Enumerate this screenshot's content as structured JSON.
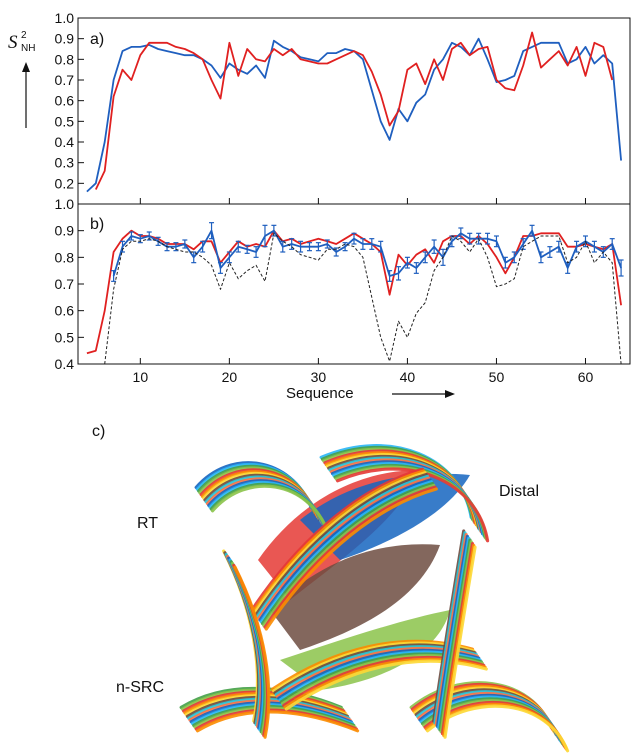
{
  "figure": {
    "ylabel_main": "S",
    "ylabel_sup": "2",
    "ylabel_sub": "NH",
    "xlabel": "Sequence"
  },
  "panel_c": {
    "label": "c)",
    "regions": [
      "RT",
      "Distal",
      "n-SRC"
    ],
    "ribbon_colors": [
      "#1565c0",
      "#29b6f6",
      "#43a047",
      "#8bc34a",
      "#e53935",
      "#fb8c00",
      "#fdd835",
      "#6d4c41",
      "#26c6da",
      "#ff7043"
    ]
  },
  "chart_data": [
    {
      "type": "line",
      "panel_label": "a)",
      "xlim": [
        3,
        65
      ],
      "ylim": [
        0.1,
        1.0
      ],
      "y_ticks": [
        0.1,
        0.2,
        0.3,
        0.4,
        0.5,
        0.6,
        0.7,
        0.8,
        0.9,
        1.0
      ],
      "y_tick_labels": [
        "",
        "0.2",
        "0.3",
        "0.4",
        "0.5",
        "0.6",
        "0.7",
        "0.8",
        "0.9",
        "1.0"
      ],
      "x_ticks": [
        10,
        20,
        30,
        40,
        50,
        60
      ],
      "series": [
        {
          "color": "#1f5fbf",
          "x": [
            4,
            5,
            6,
            7,
            8,
            9,
            10,
            11,
            12,
            13,
            14,
            15,
            16,
            17,
            18,
            19,
            20,
            21,
            22,
            23,
            24,
            25,
            26,
            27,
            28,
            29,
            30,
            31,
            32,
            33,
            34,
            35,
            36,
            37,
            38,
            39,
            40,
            41,
            42,
            43,
            44,
            45,
            46,
            47,
            48,
            49,
            50,
            51,
            52,
            53,
            54,
            55,
            56,
            57,
            58,
            59,
            60,
            61,
            62,
            63,
            64
          ],
          "y": [
            0.16,
            0.2,
            0.4,
            0.7,
            0.84,
            0.86,
            0.86,
            0.87,
            0.85,
            0.84,
            0.83,
            0.82,
            0.82,
            0.8,
            0.77,
            0.71,
            0.78,
            0.75,
            0.73,
            0.77,
            0.71,
            0.89,
            0.86,
            0.84,
            0.81,
            0.8,
            0.79,
            0.83,
            0.83,
            0.85,
            0.84,
            0.8,
            0.65,
            0.5,
            0.41,
            0.56,
            0.5,
            0.59,
            0.63,
            0.75,
            0.8,
            0.88,
            0.86,
            0.82,
            0.9,
            0.8,
            0.69,
            0.7,
            0.72,
            0.84,
            0.86,
            0.88,
            0.88,
            0.88,
            0.78,
            0.8,
            0.86,
            0.78,
            0.82,
            0.78,
            0.31
          ]
        },
        {
          "color": "#e02020",
          "x": [
            5,
            6,
            7,
            8,
            9,
            10,
            11,
            12,
            13,
            14,
            15,
            16,
            17,
            18,
            19,
            20,
            21,
            22,
            23,
            24,
            25,
            26,
            27,
            28,
            29,
            30,
            31,
            32,
            33,
            34,
            35,
            36,
            37,
            38,
            39,
            40,
            41,
            42,
            43,
            44,
            45,
            46,
            47,
            48,
            49,
            50,
            51,
            52,
            53,
            54,
            55,
            56,
            57,
            58,
            59,
            60,
            61,
            62,
            63
          ],
          "y": [
            0.17,
            0.26,
            0.62,
            0.75,
            0.7,
            0.82,
            0.88,
            0.88,
            0.88,
            0.86,
            0.85,
            0.83,
            0.8,
            0.7,
            0.61,
            0.88,
            0.72,
            0.85,
            0.8,
            0.79,
            0.85,
            0.82,
            0.85,
            0.8,
            0.79,
            0.78,
            0.78,
            0.8,
            0.82,
            0.84,
            0.82,
            0.74,
            0.63,
            0.48,
            0.55,
            0.75,
            0.78,
            0.68,
            0.8,
            0.7,
            0.85,
            0.88,
            0.82,
            0.85,
            0.86,
            0.7,
            0.66,
            0.65,
            0.77,
            0.93,
            0.76,
            0.8,
            0.84,
            0.77,
            0.86,
            0.72,
            0.88,
            0.86,
            0.7
          ]
        }
      ]
    },
    {
      "type": "line",
      "panel_label": "b)",
      "xlabel": "Sequence",
      "xlim": [
        3,
        65
      ],
      "ylim": [
        0.4,
        1.0
      ],
      "y_ticks": [
        0.4,
        0.5,
        0.6,
        0.7,
        0.8,
        0.9,
        1.0
      ],
      "y_tick_labels": [
        "0.4",
        "0.5",
        "0.6",
        "0.7",
        "0.8",
        "0.9",
        "1.0"
      ],
      "x_ticks": [
        10,
        20,
        30,
        40,
        50,
        60
      ],
      "x_tick_labels": [
        "10",
        "20",
        "30",
        "40",
        "50",
        "60"
      ],
      "series": [
        {
          "color": "#e02020",
          "style": "solid",
          "x": [
            4,
            5,
            6,
            7,
            8,
            9,
            10,
            11,
            12,
            13,
            14,
            15,
            16,
            17,
            18,
            19,
            20,
            21,
            22,
            23,
            24,
            25,
            26,
            27,
            28,
            29,
            30,
            31,
            32,
            33,
            34,
            35,
            36,
            37,
            38,
            39,
            40,
            41,
            42,
            43,
            44,
            45,
            46,
            47,
            48,
            49,
            50,
            51,
            52,
            53,
            54,
            55,
            56,
            57,
            58,
            59,
            60,
            61,
            62,
            63,
            64
          ],
          "y": [
            0.44,
            0.45,
            0.6,
            0.82,
            0.87,
            0.9,
            0.88,
            0.88,
            0.87,
            0.85,
            0.85,
            0.85,
            0.83,
            0.86,
            0.86,
            0.78,
            0.82,
            0.86,
            0.84,
            0.85,
            0.84,
            0.9,
            0.86,
            0.87,
            0.85,
            0.86,
            0.87,
            0.86,
            0.85,
            0.87,
            0.89,
            0.87,
            0.85,
            0.82,
            0.66,
            0.81,
            0.77,
            0.81,
            0.83,
            0.78,
            0.86,
            0.88,
            0.88,
            0.85,
            0.88,
            0.85,
            0.8,
            0.74,
            0.8,
            0.88,
            0.88,
            0.89,
            0.89,
            0.89,
            0.84,
            0.84,
            0.85,
            0.84,
            0.83,
            0.85,
            0.62
          ]
        },
        {
          "color": "#1f5fbf",
          "style": "solid_errorbars",
          "x": [
            7,
            8,
            9,
            10,
            11,
            12,
            13,
            14,
            15,
            16,
            17,
            18,
            19,
            20,
            21,
            22,
            23,
            24,
            25,
            26,
            27,
            28,
            29,
            30,
            31,
            32,
            33,
            34,
            35,
            36,
            37,
            38,
            39,
            40,
            41,
            42,
            43,
            44,
            45,
            46,
            47,
            48,
            49,
            50,
            51,
            52,
            53,
            54,
            55,
            56,
            57,
            58,
            59,
            60,
            61,
            62,
            63,
            64
          ],
          "y": [
            0.73,
            0.84,
            0.88,
            0.87,
            0.88,
            0.86,
            0.84,
            0.84,
            0.85,
            0.8,
            0.84,
            0.9,
            0.76,
            0.8,
            0.84,
            0.83,
            0.82,
            0.88,
            0.9,
            0.84,
            0.85,
            0.84,
            0.84,
            0.84,
            0.85,
            0.82,
            0.84,
            0.87,
            0.85,
            0.85,
            0.84,
            0.73,
            0.74,
            0.78,
            0.76,
            0.8,
            0.84,
            0.8,
            0.86,
            0.89,
            0.87,
            0.87,
            0.87,
            0.86,
            0.78,
            0.8,
            0.85,
            0.9,
            0.8,
            0.82,
            0.84,
            0.76,
            0.84,
            0.86,
            0.84,
            0.82,
            0.85,
            0.76
          ],
          "err": [
            0.02,
            0.02,
            0.015,
            0.015,
            0.015,
            0.015,
            0.015,
            0.015,
            0.015,
            0.02,
            0.02,
            0.03,
            0.02,
            0.02,
            0.02,
            0.015,
            0.02,
            0.04,
            0.02,
            0.02,
            0.02,
            0.02,
            0.015,
            0.015,
            0.015,
            0.015,
            0.015,
            0.02,
            0.02,
            0.02,
            0.02,
            0.02,
            0.025,
            0.02,
            0.02,
            0.02,
            0.025,
            0.03,
            0.02,
            0.02,
            0.02,
            0.02,
            0.02,
            0.02,
            0.02,
            0.02,
            0.02,
            0.02,
            0.02,
            0.02,
            0.02,
            0.02,
            0.02,
            0.02,
            0.02,
            0.02,
            0.02,
            0.03
          ]
        },
        {
          "color": "#222222",
          "style": "dashed",
          "x": [
            6,
            7,
            8,
            9,
            10,
            11,
            12,
            13,
            14,
            15,
            16,
            17,
            18,
            19,
            20,
            21,
            22,
            23,
            24,
            25,
            26,
            27,
            28,
            29,
            30,
            31,
            32,
            33,
            34,
            35,
            36,
            37,
            38,
            39,
            40,
            41,
            42,
            43,
            44,
            45,
            46,
            47,
            48,
            49,
            50,
            51,
            52,
            53,
            54,
            55,
            56,
            57,
            58,
            59,
            60,
            61,
            62,
            63,
            64
          ],
          "y": [
            0.4,
            0.68,
            0.83,
            0.86,
            0.86,
            0.87,
            0.86,
            0.84,
            0.83,
            0.82,
            0.82,
            0.8,
            0.77,
            0.68,
            0.78,
            0.72,
            0.75,
            0.77,
            0.71,
            0.89,
            0.86,
            0.84,
            0.81,
            0.8,
            0.79,
            0.83,
            0.83,
            0.85,
            0.84,
            0.8,
            0.65,
            0.5,
            0.41,
            0.56,
            0.5,
            0.59,
            0.63,
            0.75,
            0.8,
            0.88,
            0.86,
            0.82,
            0.87,
            0.8,
            0.69,
            0.7,
            0.72,
            0.84,
            0.86,
            0.88,
            0.88,
            0.88,
            0.78,
            0.8,
            0.86,
            0.78,
            0.82,
            0.78,
            0.4
          ]
        }
      ]
    }
  ]
}
